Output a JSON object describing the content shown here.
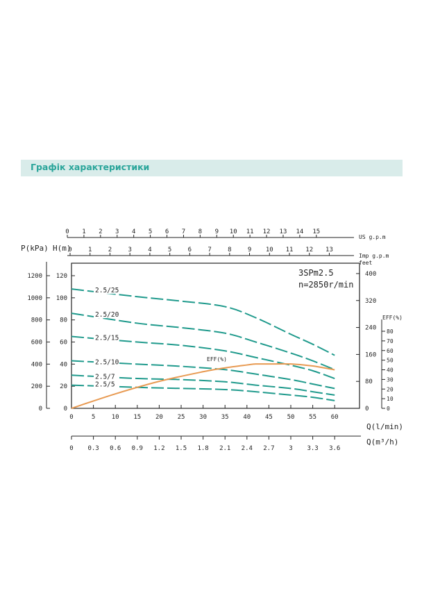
{
  "header": {
    "title": "Графік характеристики"
  },
  "chart_data": {
    "type": "line",
    "model": "3SPm2.5",
    "speed": "n=2850r/min",
    "top_axes": [
      {
        "label": "US g.p.m",
        "ticks": [
          "0",
          "1",
          "2",
          "3",
          "4",
          "5",
          "6",
          "7",
          "8",
          "9",
          "10",
          "11",
          "12",
          "13",
          "14",
          "15"
        ],
        "per_lmin": 0.2642
      },
      {
        "label": "Imp g.p.m",
        "ticks": [
          "0",
          "1",
          "2",
          "3",
          "4",
          "5",
          "6",
          "7",
          "8",
          "9",
          "10",
          "11",
          "12",
          "13"
        ],
        "per_lmin": 0.22
      }
    ],
    "left_axes": {
      "pressure": {
        "label": "P(kPa)",
        "ticks": [
          0,
          200,
          400,
          600,
          800,
          1000,
          1200
        ]
      },
      "head": {
        "label": "H(m)",
        "ticks": [
          0,
          20,
          40,
          60,
          80,
          100,
          120
        ]
      }
    },
    "right_axes": {
      "feet": {
        "label": "feet",
        "ticks": [
          0,
          80,
          160,
          240,
          320,
          400
        ]
      },
      "eff": {
        "label": "EFF(%)",
        "ticks": [
          0,
          10,
          20,
          30,
          40,
          50,
          60,
          70,
          80
        ]
      }
    },
    "x_axis": {
      "label": "Q(l/min)",
      "ticks": [
        5,
        10,
        15,
        20,
        25,
        30,
        35,
        40,
        45,
        50,
        55,
        60
      ],
      "origin": "0",
      "xlim": [
        0,
        64
      ]
    },
    "x_axis_m3h": {
      "label": "Q(m³/h)",
      "ticks": [
        "0",
        "0.3",
        "0.6",
        "0.9",
        "1.2",
        "1.5",
        "1.8",
        "2.1",
        "2.4",
        "2.7",
        "3",
        "3.3",
        "3.6"
      ]
    },
    "ylim_head": [
      0,
      120
    ],
    "series": [
      {
        "name": "2.5/25",
        "x": [
          0,
          15,
          25,
          35,
          42,
          50,
          55,
          60
        ],
        "y": [
          108,
          101,
          97,
          92,
          82,
          67,
          58,
          48
        ]
      },
      {
        "name": "2.5/20",
        "x": [
          0,
          15,
          25,
          35,
          42,
          50,
          55,
          60
        ],
        "y": [
          86,
          77,
          73,
          68,
          60,
          50,
          43,
          35
        ]
      },
      {
        "name": "2.5/15",
        "x": [
          0,
          15,
          25,
          35,
          42,
          50,
          55,
          60
        ],
        "y": [
          65,
          60,
          57,
          52,
          46,
          39,
          34,
          27
        ]
      },
      {
        "name": "2.5/10",
        "x": [
          0,
          15,
          25,
          35,
          42,
          50,
          55,
          60
        ],
        "y": [
          43,
          40,
          38,
          35,
          31,
          26,
          22,
          18
        ]
      },
      {
        "name": "2.5/7",
        "x": [
          0,
          15,
          25,
          35,
          42,
          50,
          55,
          60
        ],
        "y": [
          30,
          27,
          26,
          24,
          21,
          18,
          15,
          12
        ]
      },
      {
        "name": "2.5/5",
        "x": [
          0,
          15,
          25,
          35,
          42,
          50,
          55,
          60
        ],
        "y": [
          21,
          19,
          18,
          17,
          15,
          12,
          10,
          7
        ]
      }
    ],
    "efficiency": {
      "name": "EFF(%)",
      "x": [
        0,
        10,
        20,
        30,
        35,
        40,
        42,
        45,
        50,
        55,
        60
      ],
      "y": [
        0,
        15,
        28,
        38,
        42,
        45,
        46,
        46,
        46,
        44,
        40
      ]
    },
    "colors": {
      "pump_curve": "#1f9a8c",
      "efficiency": "#e89a52",
      "header_bg": "#d9ecea",
      "header_text": "#2aa59a"
    }
  }
}
